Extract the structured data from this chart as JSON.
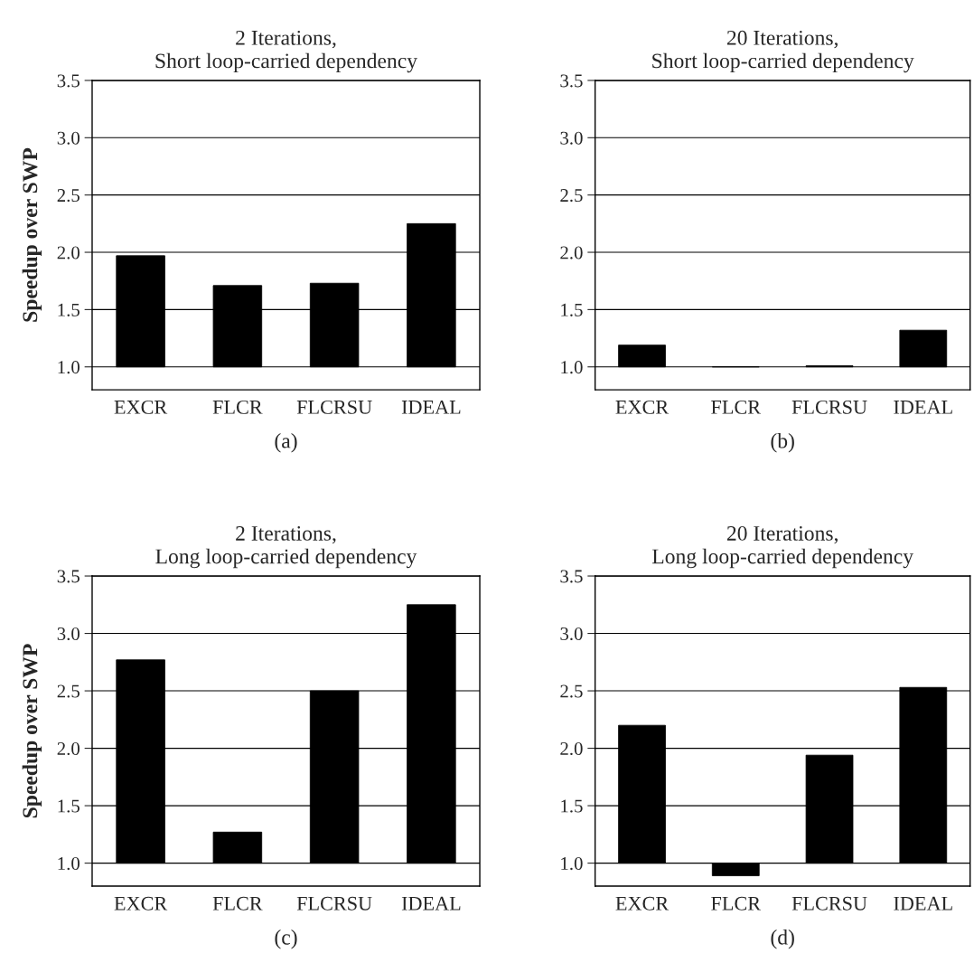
{
  "chart_data": [
    {
      "type": "bar",
      "title": "2 Iterations,\nShort loop-carried dependency",
      "ylabel": "Speedup over SWP",
      "categories": [
        "EXCR",
        "FLCR",
        "FLCRSU",
        "IDEAL"
      ],
      "base": [
        1.0,
        1.0,
        1.0,
        1.0
      ],
      "values": [
        0.97,
        0.71,
        0.73,
        1.25
      ],
      "color": "#000000",
      "ylim": [
        0.8,
        3.5
      ],
      "yticks": [
        {
          "value": 1,
          "label": "1.0"
        },
        1.5,
        {
          "value": 2,
          "label": "2.0"
        },
        2.5,
        {
          "value": 3,
          "label": "3.0"
        },
        3.5
      ],
      "grid": "y",
      "annotations": [
        "(a)"
      ]
    },
    {
      "type": "bar",
      "title": "20 Iterations,\nShort loop-carried dependency",
      "categories": [
        "EXCR",
        "FLCR",
        "FLCRSU",
        "IDEAL"
      ],
      "base": [
        1.0,
        1.0,
        1.0,
        1.0
      ],
      "values": [
        0.19,
        0.0,
        0.01,
        0.32
      ],
      "color": "#000000",
      "ylim": [
        0.8,
        3.5
      ],
      "yticks": [
        {
          "value": 1,
          "label": "1.0"
        },
        1.5,
        {
          "value": 2,
          "label": "2.0"
        },
        2.5,
        {
          "value": 3,
          "label": "3.0"
        },
        3.5
      ],
      "grid": "y",
      "annotations": [
        "(b)"
      ]
    },
    {
      "type": "bar",
      "title": "2 Iterations,\nLong loop-carried dependency",
      "ylabel": "Speedup over SWP",
      "categories": [
        "EXCR",
        "FLCR",
        "FLCRSU",
        "IDEAL"
      ],
      "base": [
        1.0,
        1.0,
        1.0,
        1.0
      ],
      "values": [
        1.77,
        0.27,
        1.5,
        2.25
      ],
      "color": "#000000",
      "ylim": [
        0.8,
        3.5
      ],
      "yticks": [
        {
          "value": 1,
          "label": "1.0"
        },
        1.5,
        {
          "value": 2,
          "label": "2.0"
        },
        2.5,
        {
          "value": 3,
          "label": "3.0"
        },
        3.5
      ],
      "grid": "y",
      "annotations": [
        "(c)"
      ]
    },
    {
      "type": "bar",
      "title": "20 Iterations,\nLong loop-carried dependency",
      "categories": [
        "EXCR",
        "FLCR",
        "FLCRSU",
        "IDEAL"
      ],
      "base": [
        1.0,
        1.0,
        1.0,
        1.0
      ],
      "values": [
        1.2,
        -0.11,
        0.94,
        1.53
      ],
      "color": "#000000",
      "ylim": [
        0.8,
        3.5
      ],
      "yticks": [
        {
          "value": 1,
          "label": "1.0"
        },
        1.5,
        {
          "value": 2,
          "label": "2.0"
        },
        2.5,
        {
          "value": 3,
          "label": "3.0"
        },
        3.5
      ],
      "grid": "y",
      "annotations": [
        "(d)"
      ]
    }
  ]
}
